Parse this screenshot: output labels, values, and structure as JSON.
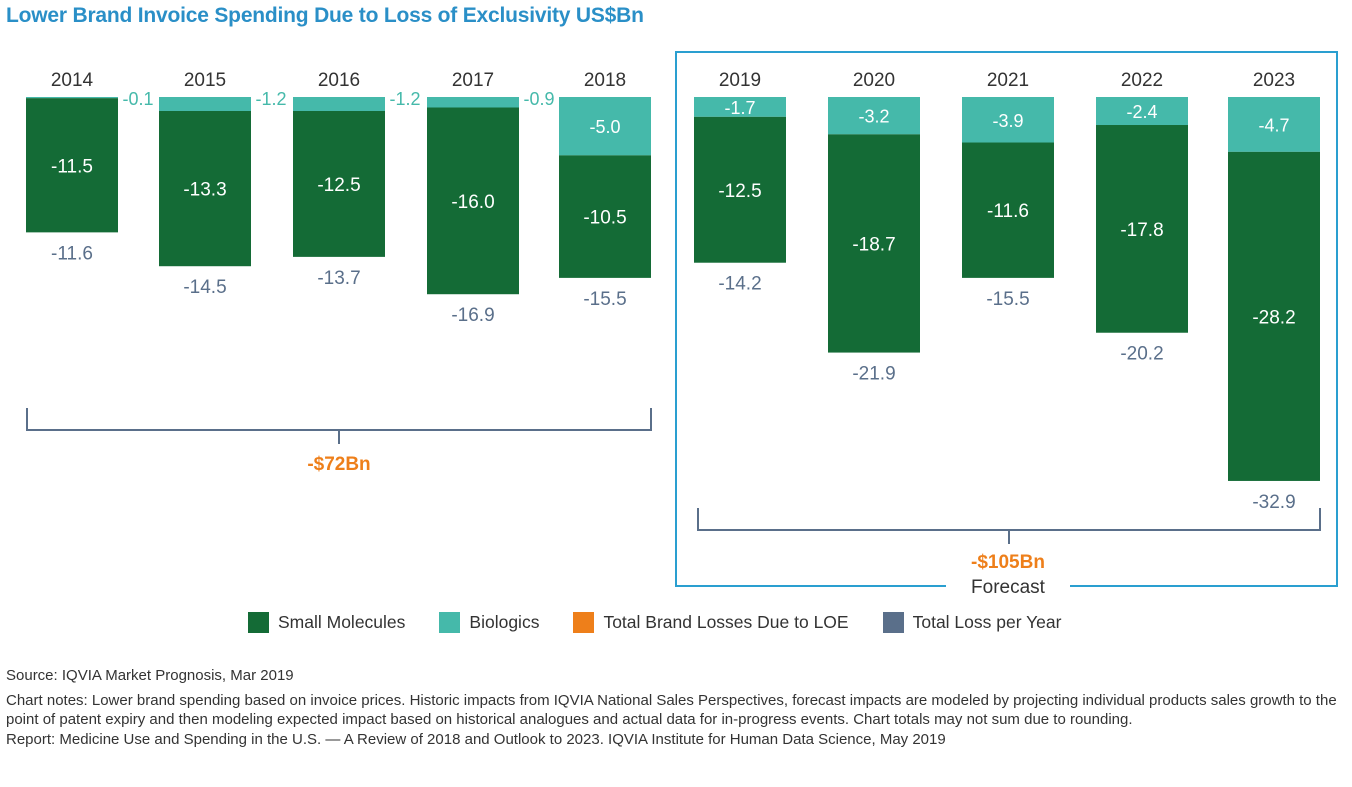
{
  "title": "Lower Brand Invoice Spending Due to Loss of Exclusivity US$Bn",
  "chart_data": {
    "type": "bar",
    "stacked": true,
    "orientation": "negative-down",
    "categories": [
      "2014",
      "2015",
      "2016",
      "2017",
      "2018",
      "2019",
      "2020",
      "2021",
      "2022",
      "2023"
    ],
    "series": [
      {
        "name": "Small Molecules",
        "color": "#146b36",
        "values": [
          -11.5,
          -13.3,
          -12.5,
          -16.0,
          -10.5,
          -12.5,
          -18.7,
          -11.6,
          -17.8,
          -28.2
        ]
      },
      {
        "name": "Biologics",
        "color": "#45b9aa",
        "values": [
          -0.1,
          -1.2,
          -1.2,
          -0.9,
          -5.0,
          -1.7,
          -3.2,
          -3.9,
          -2.4,
          -4.7
        ]
      }
    ],
    "totals": {
      "name": "Total Loss per Year",
      "color": "#5a6f8a",
      "values": [
        -11.6,
        -14.5,
        -13.7,
        -16.9,
        -15.5,
        -14.2,
        -21.9,
        -15.5,
        -20.2,
        -32.9
      ]
    },
    "small_labels": [
      "-11.5",
      "-13.3",
      "-12.5",
      "-16.0",
      "-10.5",
      "-12.5",
      "-18.7",
      "-11.6",
      "-17.8",
      "-28.2"
    ],
    "bio_labels": [
      "-0.1",
      "-1.2",
      "-1.2",
      "-0.9",
      "-5.0",
      "-1.7",
      "-3.2",
      "-3.9",
      "-2.4",
      "-4.7"
    ],
    "total_labels": [
      "-11.6",
      "-14.5",
      "-13.7",
      "-16.9",
      "-15.5",
      "-14.2",
      "-21.9",
      "-15.5",
      "-20.2",
      "-32.9"
    ],
    "groups": [
      {
        "label": "-$72Bn",
        "color": "#ee7f1a",
        "from": 0,
        "to": 4
      },
      {
        "label": "-$105Bn",
        "color": "#ee7f1a",
        "from": 5,
        "to": 9,
        "note": "Forecast",
        "box_color": "#2a9fd0"
      }
    ],
    "bracket_color": "#5a6f8a"
  },
  "legend": [
    {
      "label": "Small Molecules",
      "color": "#146b36"
    },
    {
      "label": "Biologics",
      "color": "#45b9aa"
    },
    {
      "label": "Total Brand Losses Due to LOE",
      "color": "#ee7f1a"
    },
    {
      "label": "Total Loss per Year",
      "color": "#5a6f8a"
    }
  ],
  "notes": {
    "source": "Source: IQVIA Market Prognosis, Mar 2019",
    "chart_notes": "Chart notes: Lower brand spending based on invoice prices. Historic impacts from IQVIA National Sales Perspectives, forecast impacts are modeled by projecting individual products sales growth to the point of patent expiry and then modeling expected impact based on historical analogues and actual data for in-progress events. Chart totals may not sum due to rounding.",
    "report": "Report: Medicine Use and Spending in the U.S. — A Review of 2018 and Outlook to 2023. IQVIA Institute for Human Data Science, May 2019"
  }
}
